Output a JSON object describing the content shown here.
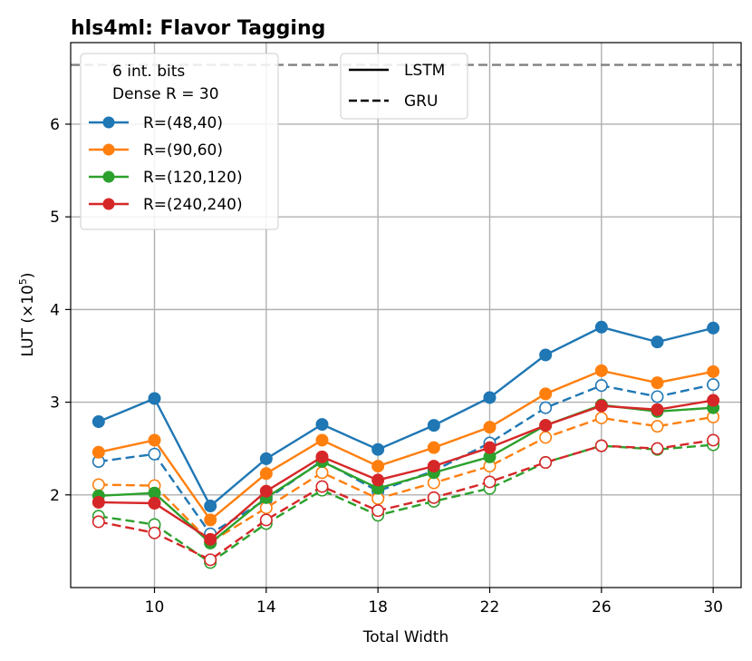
{
  "chart_data": {
    "type": "line",
    "title": "hls4ml: Flavor Tagging",
    "xlabel": "Total Width",
    "ylabel_main": "LUT (×10",
    "ylabel_exp": "5",
    "ylabel_close": ")",
    "xlim": [
      7.0,
      31.0
    ],
    "ylim": [
      1.0,
      6.88
    ],
    "xticks": [
      10,
      14,
      18,
      22,
      26,
      30
    ],
    "yticks": [
      2,
      3,
      4,
      5,
      6
    ],
    "grid": true,
    "reference_line": {
      "y": 6.64,
      "style": "dashed",
      "color": "#808080"
    },
    "x": [
      8,
      10,
      12,
      14,
      16,
      18,
      20,
      22,
      24,
      26,
      28,
      30
    ],
    "series": [
      {
        "name": "R=(48,40)",
        "color": "#1f77b4",
        "lstm": [
          2.79,
          3.04,
          1.88,
          2.39,
          2.76,
          2.49,
          2.75,
          3.05,
          3.51,
          3.81,
          3.65,
          3.8
        ],
        "gru": [
          2.36,
          2.44,
          1.58,
          1.95,
          2.37,
          2.04,
          2.26,
          2.56,
          2.94,
          3.18,
          3.06,
          3.19
        ]
      },
      {
        "name": "R=(90,60)",
        "color": "#ff7f0e",
        "lstm": [
          2.46,
          2.59,
          1.73,
          2.23,
          2.59,
          2.31,
          2.51,
          2.73,
          3.09,
          3.34,
          3.21,
          3.33
        ],
        "gru": [
          2.11,
          2.1,
          1.49,
          1.86,
          2.24,
          1.96,
          2.13,
          2.31,
          2.62,
          2.83,
          2.74,
          2.84
        ]
      },
      {
        "name": "R=(120,120)",
        "color": "#2ca02c",
        "lstm": [
          1.99,
          2.02,
          1.48,
          1.97,
          2.36,
          2.07,
          2.24,
          2.41,
          2.75,
          2.97,
          2.9,
          2.94
        ],
        "gru": [
          1.77,
          1.68,
          1.27,
          1.69,
          2.05,
          1.78,
          1.93,
          2.07,
          2.35,
          2.53,
          2.49,
          2.54
        ]
      },
      {
        "name": "R=(240,240)",
        "color": "#d62728",
        "lstm": [
          1.92,
          1.91,
          1.52,
          2.04,
          2.41,
          2.16,
          2.31,
          2.51,
          2.75,
          2.96,
          2.92,
          3.02
        ],
        "gru": [
          1.71,
          1.59,
          1.3,
          1.73,
          2.09,
          1.83,
          1.97,
          2.14,
          2.35,
          2.53,
          2.5,
          2.59
        ]
      }
    ],
    "legend_series": {
      "placement": "top-left",
      "header_line1": "6 int. bits",
      "header_line2": "Dense R = 30"
    },
    "legend_style": {
      "placement": "top-center",
      "items": [
        {
          "label": "LSTM",
          "style": "solid"
        },
        {
          "label": "GRU",
          "style": "dashed"
        }
      ]
    }
  }
}
